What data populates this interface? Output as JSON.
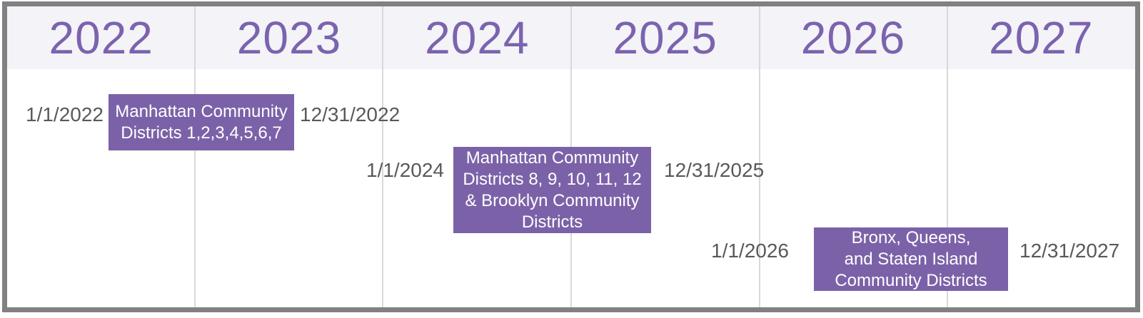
{
  "timeline": {
    "years": [
      "2022",
      "2023",
      "2024",
      "2025",
      "2026",
      "2027"
    ],
    "phases": [
      {
        "start_date": "1/1/2022",
        "end_date": "12/31/2022",
        "label": "Manhattan Community Districts 1,2,3,4,5,6,7",
        "label_lines": [
          "Manhattan Community",
          "Districts 1,2,3,4,5,6,7"
        ]
      },
      {
        "start_date": "1/1/2024",
        "end_date": "12/31/2025",
        "label": "Manhattan Community Districts 8, 9, 10, 11, 12 & Brooklyn Community Districts",
        "label_lines": [
          "Manhattan Community",
          "Districts 8, 9, 10, 11, 12",
          "& Brooklyn Community",
          "Districts"
        ]
      },
      {
        "start_date": "1/1/2026",
        "end_date": "12/31/2027",
        "label": "Bronx, Queens, and Staten Island Community Districts",
        "label_lines": [
          "Bronx, Queens,",
          "and Staten Island",
          "Community Districts"
        ]
      }
    ],
    "colors": {
      "bar_fill": "#7b62a8",
      "bar_text": "#ffffff",
      "year_text": "#7b63ae",
      "date_text": "#595959",
      "header_background": "#f3f3f8",
      "gridline": "#d9d9d9",
      "border": "#818181"
    }
  },
  "chart_data": {
    "type": "bar",
    "subtype": "gantt-timeline",
    "title": "",
    "x_axis": {
      "categories": [
        "2022",
        "2023",
        "2024",
        "2025",
        "2026",
        "2027"
      ],
      "position": "top",
      "range": [
        "1/1/2022",
        "12/31/2027"
      ]
    },
    "grid": true,
    "legend": false,
    "tasks": [
      {
        "label": "Manhattan Community Districts 1,2,3,4,5,6,7",
        "start": "1/1/2022",
        "end": "12/31/2022"
      },
      {
        "label": "Manhattan Community Districts 8, 9, 10, 11, 12 & Brooklyn Community Districts",
        "start": "1/1/2024",
        "end": "12/31/2025"
      },
      {
        "label": "Bronx, Queens, and Staten Island Community Districts",
        "start": "1/1/2026",
        "end": "12/31/2027"
      }
    ]
  }
}
